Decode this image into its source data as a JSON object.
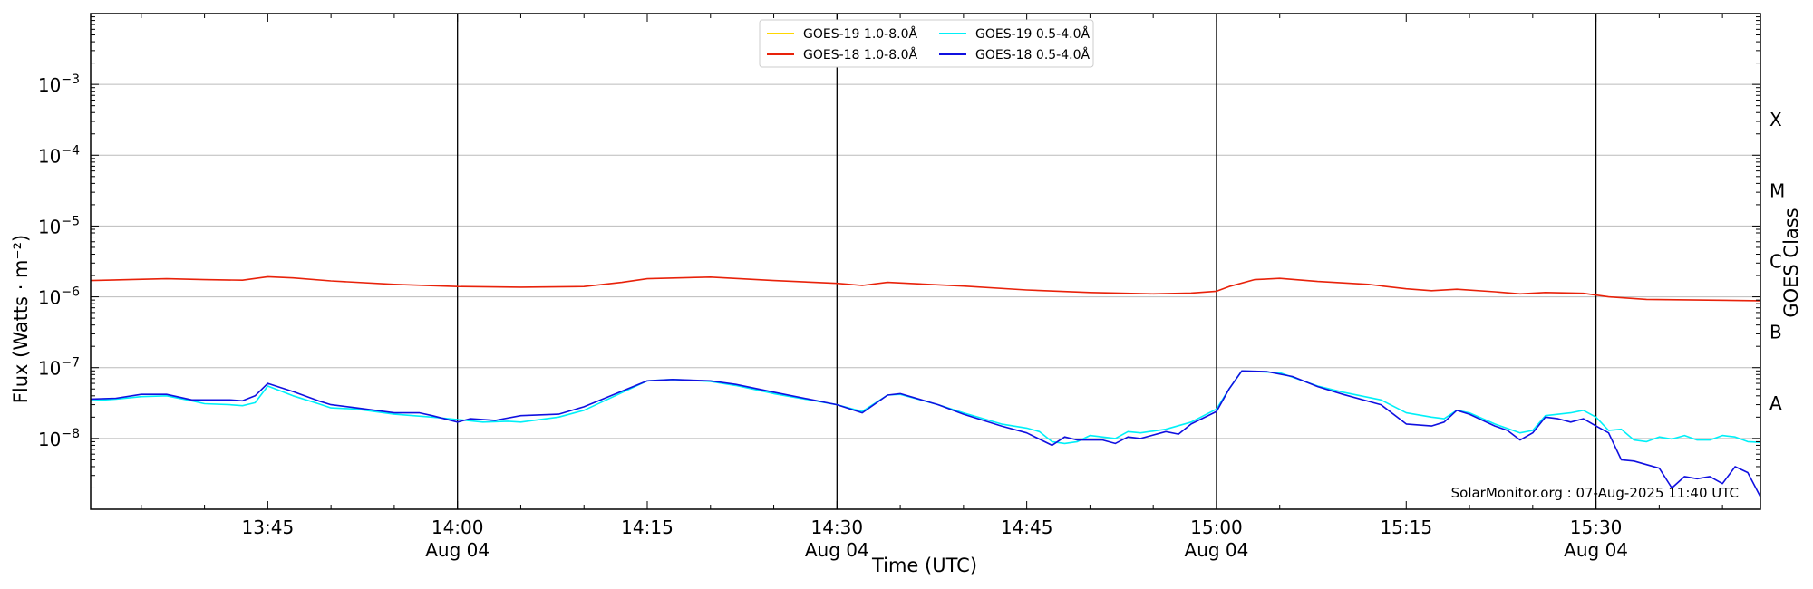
{
  "chart_data": {
    "type": "line",
    "xlabel": "Time (UTC)",
    "ylabel": "Flux (Watts · m⁻²)",
    "right_ylabel": "GOES Class",
    "y_scale": "log",
    "ylim": [
      1e-09,
      0.01
    ],
    "xlim": [
      "2025-08-04 13:31",
      "2025-08-04 15:43"
    ],
    "grid": "horizontal",
    "legend_placement": "top-center",
    "x_tick_labels": [
      {
        "time": "2025-08-04 13:45",
        "label": "13:45"
      },
      {
        "time": "2025-08-04 14:00",
        "label": "14:00",
        "sub": "Aug 04"
      },
      {
        "time": "2025-08-04 14:15",
        "label": "14:15"
      },
      {
        "time": "2025-08-04 14:30",
        "label": "14:30",
        "sub": "Aug 04"
      },
      {
        "time": "2025-08-04 14:45",
        "label": "14:45"
      },
      {
        "time": "2025-08-04 15:00",
        "label": "15:00",
        "sub": "Aug 04"
      },
      {
        "time": "2025-08-04 15:15",
        "label": "15:15"
      },
      {
        "time": "2025-08-04 15:30",
        "label": "15:30",
        "sub": "Aug 04"
      }
    ],
    "y_tick_labels": [
      {
        "exp": -3,
        "base": "10",
        "sup": "−3"
      },
      {
        "exp": -4,
        "base": "10",
        "sup": "−4"
      },
      {
        "exp": -5,
        "base": "10",
        "sup": "−5"
      },
      {
        "exp": -6,
        "base": "10",
        "sup": "−6"
      },
      {
        "exp": -7,
        "base": "10",
        "sup": "−7"
      },
      {
        "exp": -8,
        "base": "10",
        "sup": "−8"
      }
    ],
    "goes_classes": [
      {
        "label": "A",
        "exp": -7.5
      },
      {
        "label": "B",
        "exp": -6.5
      },
      {
        "label": "C",
        "exp": -5.5
      },
      {
        "label": "M",
        "exp": -4.5
      },
      {
        "label": "X",
        "exp": -3.5
      }
    ],
    "vlines": [
      "2025-08-04 14:00",
      "2025-08-04 14:30",
      "2025-08-04 15:00",
      "2025-08-04 15:30"
    ],
    "series": [
      {
        "name": "GOES-19 1.0-8.0Å",
        "color": "#ffd700",
        "points": []
      },
      {
        "name": "GOES-18 1.0-8.0Å",
        "color": "#e8220a",
        "points": [
          [
            "13:31",
            1.7e-06
          ],
          [
            "13:34",
            1.75e-06
          ],
          [
            "13:37",
            1.8e-06
          ],
          [
            "13:40",
            1.75e-06
          ],
          [
            "13:43",
            1.72e-06
          ],
          [
            "13:45",
            1.92e-06
          ],
          [
            "13:47",
            1.85e-06
          ],
          [
            "13:50",
            1.68e-06
          ],
          [
            "13:55",
            1.5e-06
          ],
          [
            "14:00",
            1.4e-06
          ],
          [
            "14:05",
            1.37e-06
          ],
          [
            "14:10",
            1.4e-06
          ],
          [
            "14:13",
            1.6e-06
          ],
          [
            "14:15",
            1.8e-06
          ],
          [
            "14:20",
            1.9e-06
          ],
          [
            "14:25",
            1.7e-06
          ],
          [
            "14:30",
            1.55e-06
          ],
          [
            "14:32",
            1.45e-06
          ],
          [
            "14:34",
            1.6e-06
          ],
          [
            "14:40",
            1.42e-06
          ],
          [
            "14:45",
            1.25e-06
          ],
          [
            "14:50",
            1.15e-06
          ],
          [
            "14:55",
            1.1e-06
          ],
          [
            "14:58",
            1.13e-06
          ],
          [
            "15:00",
            1.2e-06
          ],
          [
            "15:01",
            1.4e-06
          ],
          [
            "15:03",
            1.75e-06
          ],
          [
            "15:05",
            1.82e-06
          ],
          [
            "15:08",
            1.65e-06
          ],
          [
            "15:12",
            1.5e-06
          ],
          [
            "15:15",
            1.3e-06
          ],
          [
            "15:17",
            1.22e-06
          ],
          [
            "15:19",
            1.28e-06
          ],
          [
            "15:22",
            1.18e-06
          ],
          [
            "15:24",
            1.1e-06
          ],
          [
            "15:26",
            1.15e-06
          ],
          [
            "15:29",
            1.12e-06
          ],
          [
            "15:31",
            1e-06
          ],
          [
            "15:34",
            9.2e-07
          ],
          [
            "15:43",
            8.8e-07
          ]
        ]
      },
      {
        "name": "GOES-19 0.5-4.0Å",
        "color": "#00f0f8",
        "points": [
          [
            "13:31",
            3.4e-08
          ],
          [
            "13:33",
            3.6e-08
          ],
          [
            "13:35",
            3.9e-08
          ],
          [
            "13:37",
            4e-08
          ],
          [
            "13:39",
            3.4e-08
          ],
          [
            "13:40",
            3.1e-08
          ],
          [
            "13:42",
            3e-08
          ],
          [
            "13:43",
            2.9e-08
          ],
          [
            "13:44",
            3.2e-08
          ],
          [
            "13:45",
            5.5e-08
          ],
          [
            "13:47",
            4e-08
          ],
          [
            "13:49",
            3.1e-08
          ],
          [
            "13:50",
            2.7e-08
          ],
          [
            "13:52",
            2.6e-08
          ],
          [
            "13:55",
            2.2e-08
          ],
          [
            "13:58",
            2e-08
          ],
          [
            "14:00",
            1.85e-08
          ],
          [
            "14:02",
            1.7e-08
          ],
          [
            "14:04",
            1.75e-08
          ],
          [
            "14:05",
            1.7e-08
          ],
          [
            "14:08",
            2e-08
          ],
          [
            "14:10",
            2.5e-08
          ],
          [
            "14:15",
            6.5e-08
          ],
          [
            "14:17",
            6.8e-08
          ],
          [
            "14:20",
            6.4e-08
          ],
          [
            "14:22",
            5.6e-08
          ],
          [
            "14:25",
            4.3e-08
          ],
          [
            "14:30",
            3e-08
          ],
          [
            "14:32",
            2.4e-08
          ],
          [
            "14:34",
            4.1e-08
          ],
          [
            "14:35",
            4.2e-08
          ],
          [
            "14:38",
            3e-08
          ],
          [
            "14:40",
            2.3e-08
          ],
          [
            "14:43",
            1.6e-08
          ],
          [
            "14:45",
            1.4e-08
          ],
          [
            "14:46",
            1.25e-08
          ],
          [
            "14:47",
            9e-09
          ],
          [
            "14:48",
            8.5e-09
          ],
          [
            "14:49",
            9e-09
          ],
          [
            "14:50",
            1.1e-08
          ],
          [
            "14:52",
            1e-08
          ],
          [
            "14:53",
            1.25e-08
          ],
          [
            "14:54",
            1.2e-08
          ],
          [
            "14:56",
            1.35e-08
          ],
          [
            "14:58",
            1.7e-08
          ],
          [
            "15:00",
            2.6e-08
          ],
          [
            "15:01",
            5e-08
          ],
          [
            "15:02",
            9e-08
          ],
          [
            "15:05",
            8.5e-08
          ],
          [
            "15:08",
            5.5e-08
          ],
          [
            "15:10",
            4.5e-08
          ],
          [
            "15:13",
            3.5e-08
          ],
          [
            "15:15",
            2.3e-08
          ],
          [
            "15:17",
            2e-08
          ],
          [
            "15:18",
            1.9e-08
          ],
          [
            "15:19",
            2.5e-08
          ],
          [
            "15:20",
            2.3e-08
          ],
          [
            "15:22",
            1.6e-08
          ],
          [
            "15:24",
            1.2e-08
          ],
          [
            "15:25",
            1.3e-08
          ],
          [
            "15:26",
            2.1e-08
          ],
          [
            "15:28",
            2.3e-08
          ],
          [
            "15:29",
            2.5e-08
          ],
          [
            "15:30",
            2e-08
          ],
          [
            "15:31",
            1.3e-08
          ],
          [
            "15:32",
            1.35e-08
          ],
          [
            "15:33",
            9.5e-09
          ],
          [
            "15:34",
            9e-09
          ],
          [
            "15:35",
            1.05e-08
          ],
          [
            "15:36",
            9.8e-09
          ],
          [
            "15:37",
            1.1e-08
          ],
          [
            "15:38",
            9.5e-09
          ],
          [
            "15:39",
            9.5e-09
          ],
          [
            "15:40",
            1.1e-08
          ],
          [
            "15:41",
            1.05e-08
          ],
          [
            "15:42",
            9e-09
          ],
          [
            "15:43",
            8.8e-09
          ]
        ]
      },
      {
        "name": "GOES-18 0.5-4.0Å",
        "color": "#1010e0",
        "points": [
          [
            "13:31",
            3.6e-08
          ],
          [
            "13:33",
            3.7e-08
          ],
          [
            "13:35",
            4.2e-08
          ],
          [
            "13:37",
            4.2e-08
          ],
          [
            "13:39",
            3.5e-08
          ],
          [
            "13:40",
            3.5e-08
          ],
          [
            "13:42",
            3.5e-08
          ],
          [
            "13:43",
            3.4e-08
          ],
          [
            "13:44",
            4e-08
          ],
          [
            "13:45",
            6e-08
          ],
          [
            "13:47",
            4.6e-08
          ],
          [
            "13:49",
            3.4e-08
          ],
          [
            "13:50",
            3e-08
          ],
          [
            "13:52",
            2.7e-08
          ],
          [
            "13:55",
            2.3e-08
          ],
          [
            "13:57",
            2.3e-08
          ],
          [
            "13:58",
            2.1e-08
          ],
          [
            "14:00",
            1.7e-08
          ],
          [
            "14:01",
            1.9e-08
          ],
          [
            "14:03",
            1.8e-08
          ],
          [
            "14:05",
            2.1e-08
          ],
          [
            "14:08",
            2.2e-08
          ],
          [
            "14:10",
            2.8e-08
          ],
          [
            "14:15",
            6.5e-08
          ],
          [
            "14:17",
            6.8e-08
          ],
          [
            "14:20",
            6.5e-08
          ],
          [
            "14:22",
            5.8e-08
          ],
          [
            "14:25",
            4.5e-08
          ],
          [
            "14:30",
            3e-08
          ],
          [
            "14:32",
            2.3e-08
          ],
          [
            "14:34",
            4.1e-08
          ],
          [
            "14:35",
            4.3e-08
          ],
          [
            "14:38",
            3e-08
          ],
          [
            "14:40",
            2.2e-08
          ],
          [
            "14:43",
            1.5e-08
          ],
          [
            "14:45",
            1.2e-08
          ],
          [
            "14:47",
            8e-09
          ],
          [
            "14:48",
            1.05e-08
          ],
          [
            "14:49",
            9.5e-09
          ],
          [
            "14:51",
            9.5e-09
          ],
          [
            "14:52",
            8.5e-09
          ],
          [
            "14:53",
            1.05e-08
          ],
          [
            "14:54",
            1e-08
          ],
          [
            "14:56",
            1.25e-08
          ],
          [
            "14:57",
            1.15e-08
          ],
          [
            "14:58",
            1.6e-08
          ],
          [
            "15:00",
            2.4e-08
          ],
          [
            "15:01",
            5e-08
          ],
          [
            "15:02",
            9e-08
          ],
          [
            "15:04",
            8.8e-08
          ],
          [
            "15:06",
            7.5e-08
          ],
          [
            "15:08",
            5.4e-08
          ],
          [
            "15:10",
            4.2e-08
          ],
          [
            "15:13",
            3e-08
          ],
          [
            "15:15",
            1.6e-08
          ],
          [
            "15:17",
            1.5e-08
          ],
          [
            "15:18",
            1.7e-08
          ],
          [
            "15:19",
            2.5e-08
          ],
          [
            "15:20",
            2.2e-08
          ],
          [
            "15:22",
            1.5e-08
          ],
          [
            "15:23",
            1.3e-08
          ],
          [
            "15:24",
            9.5e-09
          ],
          [
            "15:25",
            1.2e-08
          ],
          [
            "15:26",
            2e-08
          ],
          [
            "15:27",
            1.9e-08
          ],
          [
            "15:28",
            1.7e-08
          ],
          [
            "15:29",
            1.9e-08
          ],
          [
            "15:30",
            1.5e-08
          ],
          [
            "15:31",
            1.2e-08
          ],
          [
            "15:32",
            5e-09
          ],
          [
            "15:33",
            4.8e-09
          ],
          [
            "15:35",
            3.8e-09
          ],
          [
            "15:36",
            2e-09
          ],
          [
            "15:37",
            2.9e-09
          ],
          [
            "15:38",
            2.7e-09
          ],
          [
            "15:39",
            2.9e-09
          ],
          [
            "15:40",
            2.3e-09
          ],
          [
            "15:41",
            4e-09
          ],
          [
            "15:42",
            3.3e-09
          ],
          [
            "15:43",
            1.5e-09
          ]
        ]
      }
    ],
    "annotations": [
      {
        "text": "SolarMonitor.org : 07-Aug-2025 11:40 UTC",
        "position": "bottom-right"
      }
    ]
  }
}
